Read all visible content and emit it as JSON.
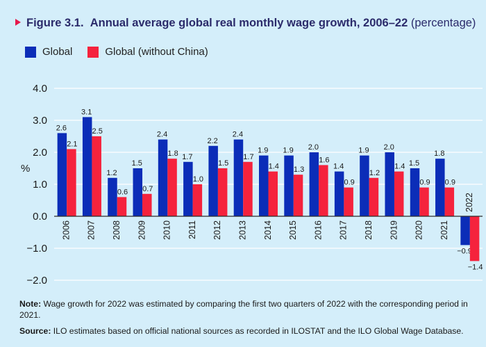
{
  "figure": {
    "label": "Figure 3.1.",
    "title": "Annual average global real monthly wage growth, 2006–22",
    "unit_note": "(percentage)"
  },
  "legend": [
    {
      "name": "Global",
      "color": "#0b2db8"
    },
    {
      "name": "Global (without China)",
      "color": "#f5233d"
    }
  ],
  "chart_data": {
    "type": "bar",
    "categories": [
      "2006",
      "2007",
      "2008",
      "2009",
      "2010",
      "2011",
      "2012",
      "2013",
      "2014",
      "2015",
      "2016",
      "2017",
      "2018",
      "2019",
      "2020",
      "2021",
      "2022"
    ],
    "series": [
      {
        "name": "Global",
        "values": [
          2.6,
          3.1,
          1.2,
          1.5,
          2.4,
          1.7,
          2.2,
          2.4,
          1.9,
          1.9,
          2.0,
          1.4,
          1.9,
          2.0,
          1.5,
          1.8,
          -0.9
        ],
        "labels": [
          "2.6",
          "3.1",
          "1.2",
          "1.5",
          "2.4",
          "1.7",
          "2.2",
          "2.4",
          "1.9",
          "1.9",
          "2.0",
          "1.4",
          "1.9",
          "2.0",
          "1.5",
          "1.8",
          "−0.9"
        ]
      },
      {
        "name": "Global (without China)",
        "values": [
          2.1,
          2.5,
          0.6,
          0.7,
          1.8,
          1.0,
          1.5,
          1.7,
          1.4,
          1.3,
          1.6,
          0.9,
          1.2,
          1.4,
          0.9,
          0.9,
          -1.4
        ],
        "labels": [
          "2.1",
          "2.5",
          "0.6",
          "0.7",
          "1.8",
          "1.0",
          "1.5",
          "1.7",
          "1.4",
          "1.3",
          "1.6",
          "0.9",
          "1.2",
          "1.4",
          "0.9",
          "0.9",
          "−1.4"
        ]
      }
    ],
    "ylabel": "%",
    "ylim": [
      -2.0,
      4.0
    ],
    "yticks": [
      "4.0",
      "3.0",
      "2.0",
      "1.0",
      "0.0",
      "−1.0",
      "−2.0"
    ],
    "ytick_values": [
      4,
      3,
      2,
      1,
      0,
      -1,
      -2
    ],
    "grid": true,
    "legend_position": "top-left"
  },
  "notes": {
    "note_label": "Note:",
    "note_text": " Wage growth for 2022 was estimated by comparing the first two quarters of 2022 with the corresponding period in 2021.",
    "source_label": "Source:",
    "source_text": " ILO estimates based on official national sources as recorded in ILOSTAT and the ILO Global Wage Database."
  }
}
